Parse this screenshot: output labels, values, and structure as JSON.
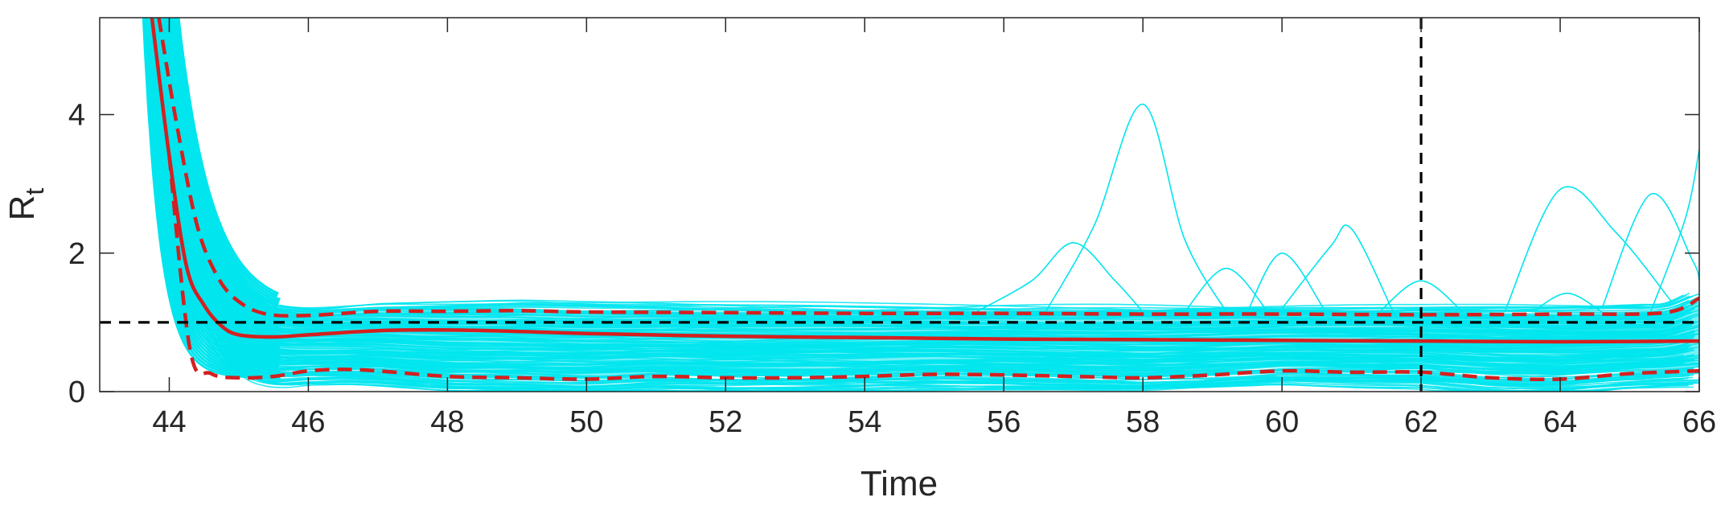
{
  "chart_data": {
    "type": "line",
    "xlabel": "Time",
    "ylabel": "R",
    "ylabel_subscript": "t",
    "xlim": [
      43,
      66
    ],
    "ylim": [
      0,
      5.4
    ],
    "xticks": [
      44,
      46,
      48,
      50,
      52,
      54,
      56,
      58,
      60,
      62,
      64,
      66
    ],
    "yticks": [
      0,
      2,
      4
    ],
    "grid": false,
    "legend": "none",
    "colors": {
      "samples": "#00e5ee",
      "mean": "#d42020",
      "bounds": "#d42020",
      "reference": "#000000"
    },
    "reference_lines": {
      "horizontal_y": 1,
      "vertical_x": 62
    },
    "series": [
      {
        "role": "mean",
        "style": "solid",
        "x": [
          43.75,
          44.0,
          44.25,
          44.5,
          44.75,
          45.0,
          45.5,
          46,
          47,
          48,
          49,
          50,
          52,
          54,
          56,
          58,
          60,
          62,
          64,
          66
        ],
        "y": [
          5.4,
          3.4,
          1.8,
          1.25,
          0.95,
          0.82,
          0.79,
          0.82,
          0.88,
          0.89,
          0.87,
          0.84,
          0.8,
          0.78,
          0.76,
          0.75,
          0.74,
          0.73,
          0.72,
          0.73
        ]
      },
      {
        "role": "upper-bound",
        "style": "dashed",
        "x": [
          43.85,
          44.1,
          44.4,
          44.7,
          45.0,
          45.4,
          46,
          47,
          48,
          49,
          50,
          52,
          54,
          56,
          58,
          60,
          62,
          64,
          65.5,
          66
        ],
        "y": [
          5.4,
          3.9,
          2.4,
          1.65,
          1.3,
          1.12,
          1.1,
          1.16,
          1.16,
          1.17,
          1.15,
          1.14,
          1.13,
          1.13,
          1.12,
          1.12,
          1.11,
          1.12,
          1.14,
          1.35
        ]
      },
      {
        "role": "lower-bound",
        "style": "dashed",
        "x": [
          44.0,
          44.3,
          44.6,
          45,
          45.5,
          46,
          46.5,
          47,
          48,
          49,
          50,
          51,
          52,
          53,
          54,
          55,
          56,
          57,
          58,
          59,
          60,
          61,
          62,
          63,
          64,
          65,
          66
        ],
        "y": [
          3.4,
          0.6,
          0.26,
          0.2,
          0.22,
          0.3,
          0.32,
          0.3,
          0.22,
          0.2,
          0.18,
          0.22,
          0.2,
          0.2,
          0.22,
          0.25,
          0.24,
          0.22,
          0.2,
          0.24,
          0.3,
          0.28,
          0.28,
          0.2,
          0.18,
          0.26,
          0.3
        ]
      },
      {
        "role": "sample-spike",
        "x": [
          56.6,
          57.3,
          58.0,
          58.6,
          59.2
        ],
        "y": [
          1.15,
          2.4,
          4.15,
          2.2,
          1.15
        ]
      },
      {
        "role": "sample-spike",
        "x": [
          55.6,
          56.4,
          57.0,
          57.6,
          58.0
        ],
        "y": [
          1.15,
          1.6,
          2.15,
          1.6,
          1.15
        ]
      },
      {
        "role": "sample-spike",
        "x": [
          58.6,
          59.2,
          59.8
        ],
        "y": [
          1.15,
          1.78,
          1.15
        ]
      },
      {
        "role": "sample-spike",
        "x": [
          59.5,
          60.0,
          60.6
        ],
        "y": [
          1.15,
          2.0,
          1.2
        ]
      },
      {
        "role": "sample-spike",
        "x": [
          60.0,
          60.7,
          61.0,
          61.6
        ],
        "y": [
          1.2,
          2.1,
          2.35,
          1.15
        ]
      },
      {
        "role": "sample-spike",
        "x": [
          61.4,
          62.0,
          62.6
        ],
        "y": [
          1.15,
          1.6,
          1.15
        ]
      },
      {
        "role": "sample-spike",
        "x": [
          63.2,
          64.0,
          64.8,
          65.6
        ],
        "y": [
          1.15,
          2.92,
          2.3,
          1.3
        ]
      },
      {
        "role": "sample-spike",
        "x": [
          64.6,
          65.3,
          65.9,
          66.0
        ],
        "y": [
          1.2,
          2.85,
          1.9,
          1.6
        ]
      },
      {
        "role": "sample-spike",
        "x": [
          65.3,
          65.8,
          66.0
        ],
        "y": [
          1.15,
          2.5,
          3.5
        ]
      },
      {
        "role": "sample-spike",
        "x": [
          63.6,
          64.1,
          64.6
        ],
        "y": [
          1.15,
          1.42,
          1.15
        ]
      }
    ]
  }
}
